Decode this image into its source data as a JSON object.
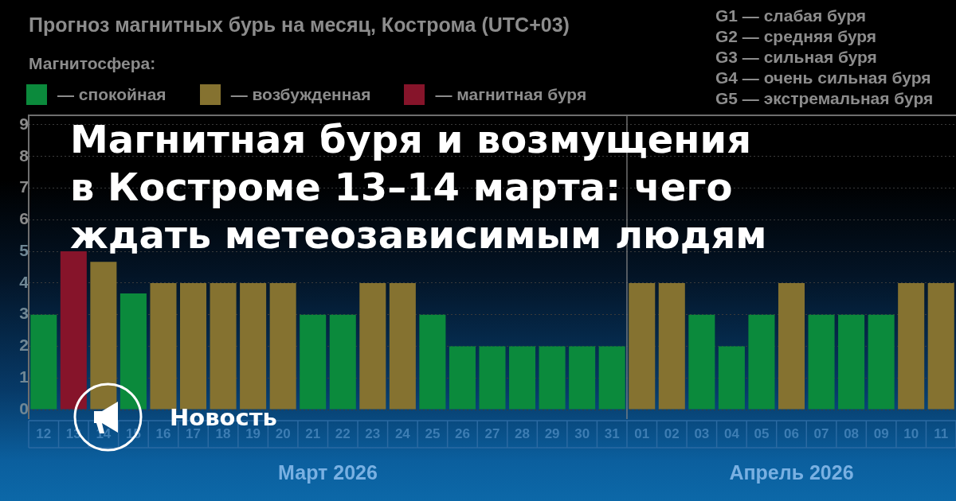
{
  "chart_data": {
    "type": "bar",
    "title": "Прогноз магнитных бурь на месяц, Кострома (UTC+03)",
    "subtitle": "Магнитная буря и возмущения в Костроме 13–14 марта: чего ждать метеозависимым людям",
    "legend_title": "Магнитосфера:",
    "legend": "top left",
    "categories": [
      "12",
      "13",
      "14",
      "15",
      "16",
      "17",
      "18",
      "19",
      "20",
      "21",
      "22",
      "23",
      "24",
      "25",
      "26",
      "27",
      "28",
      "29",
      "30",
      "31",
      "01",
      "02",
      "03",
      "04",
      "05",
      "06",
      "07",
      "08",
      "09",
      "10",
      "11"
    ],
    "series": [
      {
        "name": "— спокойная",
        "color": "#0b8a3c",
        "values": [
          3,
          null,
          null,
          3.67,
          null,
          null,
          null,
          null,
          null,
          3,
          3,
          null,
          null,
          3,
          2,
          2,
          2,
          2,
          2,
          2,
          null,
          null,
          3,
          2,
          3,
          null,
          3,
          3,
          3,
          null,
          null
        ]
      },
      {
        "name": "— возбужденная",
        "color": "#857230",
        "values": [
          null,
          null,
          4.67,
          null,
          4,
          4,
          4,
          4,
          4,
          null,
          null,
          4,
          4,
          null,
          null,
          null,
          null,
          null,
          null,
          null,
          4,
          4,
          null,
          null,
          null,
          4,
          null,
          null,
          null,
          4,
          4
        ]
      },
      {
        "name": "— магнитная буря",
        "color": "#86142a",
        "values": [
          null,
          5,
          null,
          null,
          null,
          null,
          null,
          null,
          null,
          null,
          null,
          null,
          null,
          null,
          null,
          null,
          null,
          null,
          null,
          null,
          null,
          null,
          null,
          null,
          null,
          null,
          null,
          null,
          null,
          null,
          null
        ]
      }
    ],
    "ylim": [
      -0.3,
      9.3
    ],
    "yticks": [
      0,
      1,
      2,
      3,
      4,
      5,
      6,
      7,
      8,
      9
    ],
    "grid": "y",
    "ref_lines": [
      {
        "axis": "x",
        "value": "01"
      }
    ],
    "annotations": [
      "G1 — слабая буря",
      "G2 — средняя буря",
      "G3 — сильная буря",
      "G4 — очень сильная буря",
      "G5 — экстремальная буря",
      "Новость",
      "Март 2026",
      "Апрель 2026"
    ]
  }
}
